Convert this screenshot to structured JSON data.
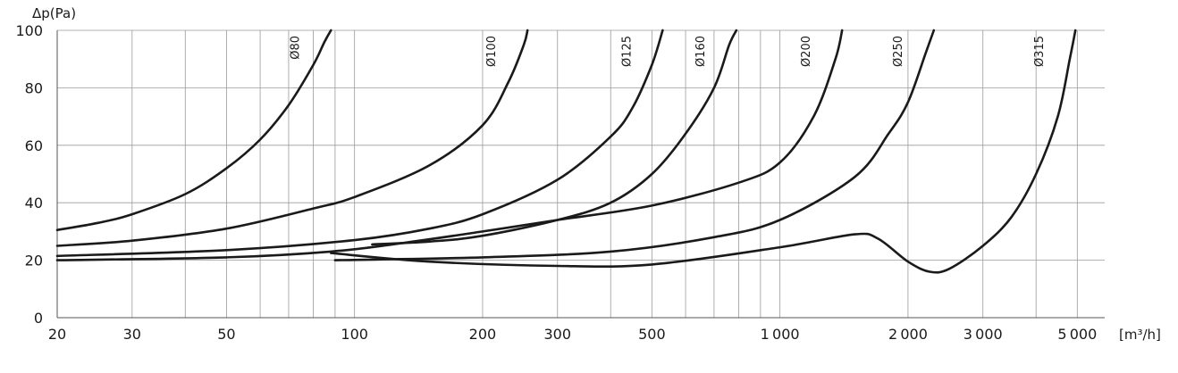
{
  "chart_data": {
    "type": "line",
    "title": "",
    "xlabel": "[m³/h]",
    "ylabel": "Δp(Pa)",
    "xscale": "log",
    "xlim": [
      20,
      5800
    ],
    "ylim": [
      0,
      100
    ],
    "grid": true,
    "y_ticks": [
      0,
      20,
      40,
      60,
      80,
      100
    ],
    "x_tick_labels": [
      20,
      30,
      50,
      100,
      200,
      300,
      500,
      1000,
      2000,
      3000,
      5000
    ],
    "x_minor_grid": [
      40,
      60,
      70,
      80,
      90,
      400,
      600,
      700,
      800,
      900,
      4000
    ],
    "series": [
      {
        "name": "Ø80",
        "points": [
          [
            20,
            30.5
          ],
          [
            25,
            33
          ],
          [
            30,
            36
          ],
          [
            40,
            43
          ],
          [
            50,
            52
          ],
          [
            60,
            62
          ],
          [
            70,
            74
          ],
          [
            80,
            88
          ],
          [
            85,
            96
          ],
          [
            88,
            100
          ]
        ]
      },
      {
        "name": "Ø100",
        "points": [
          [
            20,
            25
          ],
          [
            30,
            26.8
          ],
          [
            50,
            31
          ],
          [
            80,
            38
          ],
          [
            100,
            42
          ],
          [
            150,
            53
          ],
          [
            200,
            67
          ],
          [
            230,
            82
          ],
          [
            250,
            95
          ],
          [
            255,
            100
          ]
        ]
      },
      {
        "name": "Ø125",
        "points": [
          [
            20,
            21.5
          ],
          [
            50,
            23.5
          ],
          [
            100,
            27
          ],
          [
            150,
            31
          ],
          [
            200,
            36
          ],
          [
            300,
            48
          ],
          [
            400,
            63
          ],
          [
            450,
            73
          ],
          [
            500,
            88
          ],
          [
            530,
            100
          ]
        ]
      },
      {
        "name": "Ø160",
        "points": [
          [
            110,
            25.5
          ],
          [
            150,
            26.5
          ],
          [
            200,
            28.5
          ],
          [
            300,
            34
          ],
          [
            400,
            40
          ],
          [
            500,
            50
          ],
          [
            600,
            64
          ],
          [
            700,
            80
          ],
          [
            760,
            95
          ],
          [
            790,
            100
          ]
        ]
      },
      {
        "name": "Ø200",
        "points": [
          [
            20,
            20
          ],
          [
            50,
            21
          ],
          [
            88,
            23
          ],
          [
            130,
            26
          ],
          [
            200,
            30
          ],
          [
            300,
            34
          ],
          [
            500,
            39
          ],
          [
            800,
            47
          ],
          [
            1000,
            54
          ],
          [
            1200,
            70
          ],
          [
            1350,
            90
          ],
          [
            1400,
            100
          ]
        ]
      },
      {
        "name": "Ø250",
        "points": [
          [
            90,
            20
          ],
          [
            200,
            21
          ],
          [
            400,
            23
          ],
          [
            700,
            28
          ],
          [
            1000,
            34
          ],
          [
            1500,
            49
          ],
          [
            1800,
            64
          ],
          [
            2000,
            75
          ],
          [
            2200,
            92
          ],
          [
            2300,
            100
          ]
        ]
      },
      {
        "name": "Ø315",
        "points": [
          [
            88,
            22.5
          ],
          [
            150,
            19.5
          ],
          [
            300,
            18
          ],
          [
            500,
            18.5
          ],
          [
            1000,
            24.5
          ],
          [
            1500,
            29
          ],
          [
            1700,
            27.5
          ],
          [
            2000,
            19.5
          ],
          [
            2250,
            16
          ],
          [
            2500,
            17
          ],
          [
            3000,
            25
          ],
          [
            3500,
            35
          ],
          [
            4000,
            50
          ],
          [
            4500,
            70
          ],
          [
            4800,
            90
          ],
          [
            4950,
            100
          ]
        ]
      }
    ]
  }
}
